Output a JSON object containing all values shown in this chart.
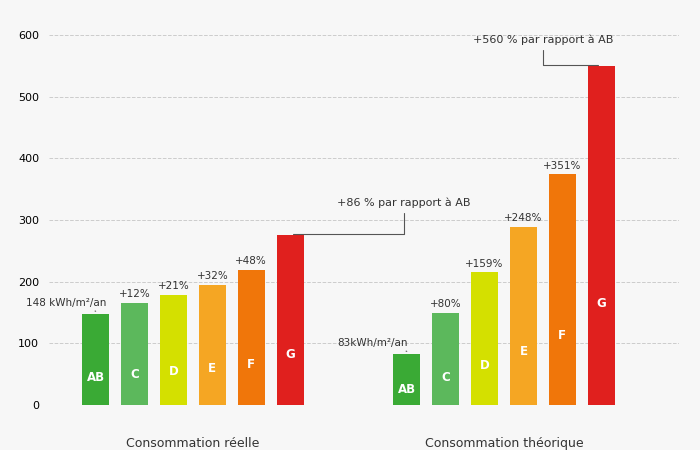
{
  "real_labels": [
    "AB",
    "C",
    "D",
    "E",
    "F",
    "G"
  ],
  "real_values": [
    148,
    166,
    179,
    195,
    219,
    275
  ],
  "real_pct_labels": [
    "148 kWh/m²/an",
    "+12%",
    "+21%",
    "+32%",
    "+48%",
    ""
  ],
  "real_top_annotation": "+86 % par rapport à AB",
  "theo_labels": [
    "AB",
    "C",
    "D",
    "E",
    "F",
    "G"
  ],
  "theo_values": [
    83,
    149,
    215,
    289,
    374,
    549
  ],
  "theo_pct_labels": [
    "83kWh/m²/an",
    "+80%",
    "+159%",
    "+248%",
    "+351%",
    ""
  ],
  "theo_top_annotation": "+560 % par rapport à AB",
  "colors": [
    "#3aaa35",
    "#5cb85c",
    "#d4e000",
    "#f5a623",
    "#f0760a",
    "#e0201e"
  ],
  "bg_color": "#f7f7f7",
  "grid_color": "#cccccc",
  "label_real": "Consommation réelle",
  "label_theo": "Consommation théorique",
  "ylim": [
    0,
    620
  ],
  "yticks": [
    0,
    100,
    200,
    300,
    400,
    500,
    600
  ],
  "bar_label_fontsize": 7.5,
  "letter_fontsize": 8.5,
  "annotation_fontsize": 8
}
